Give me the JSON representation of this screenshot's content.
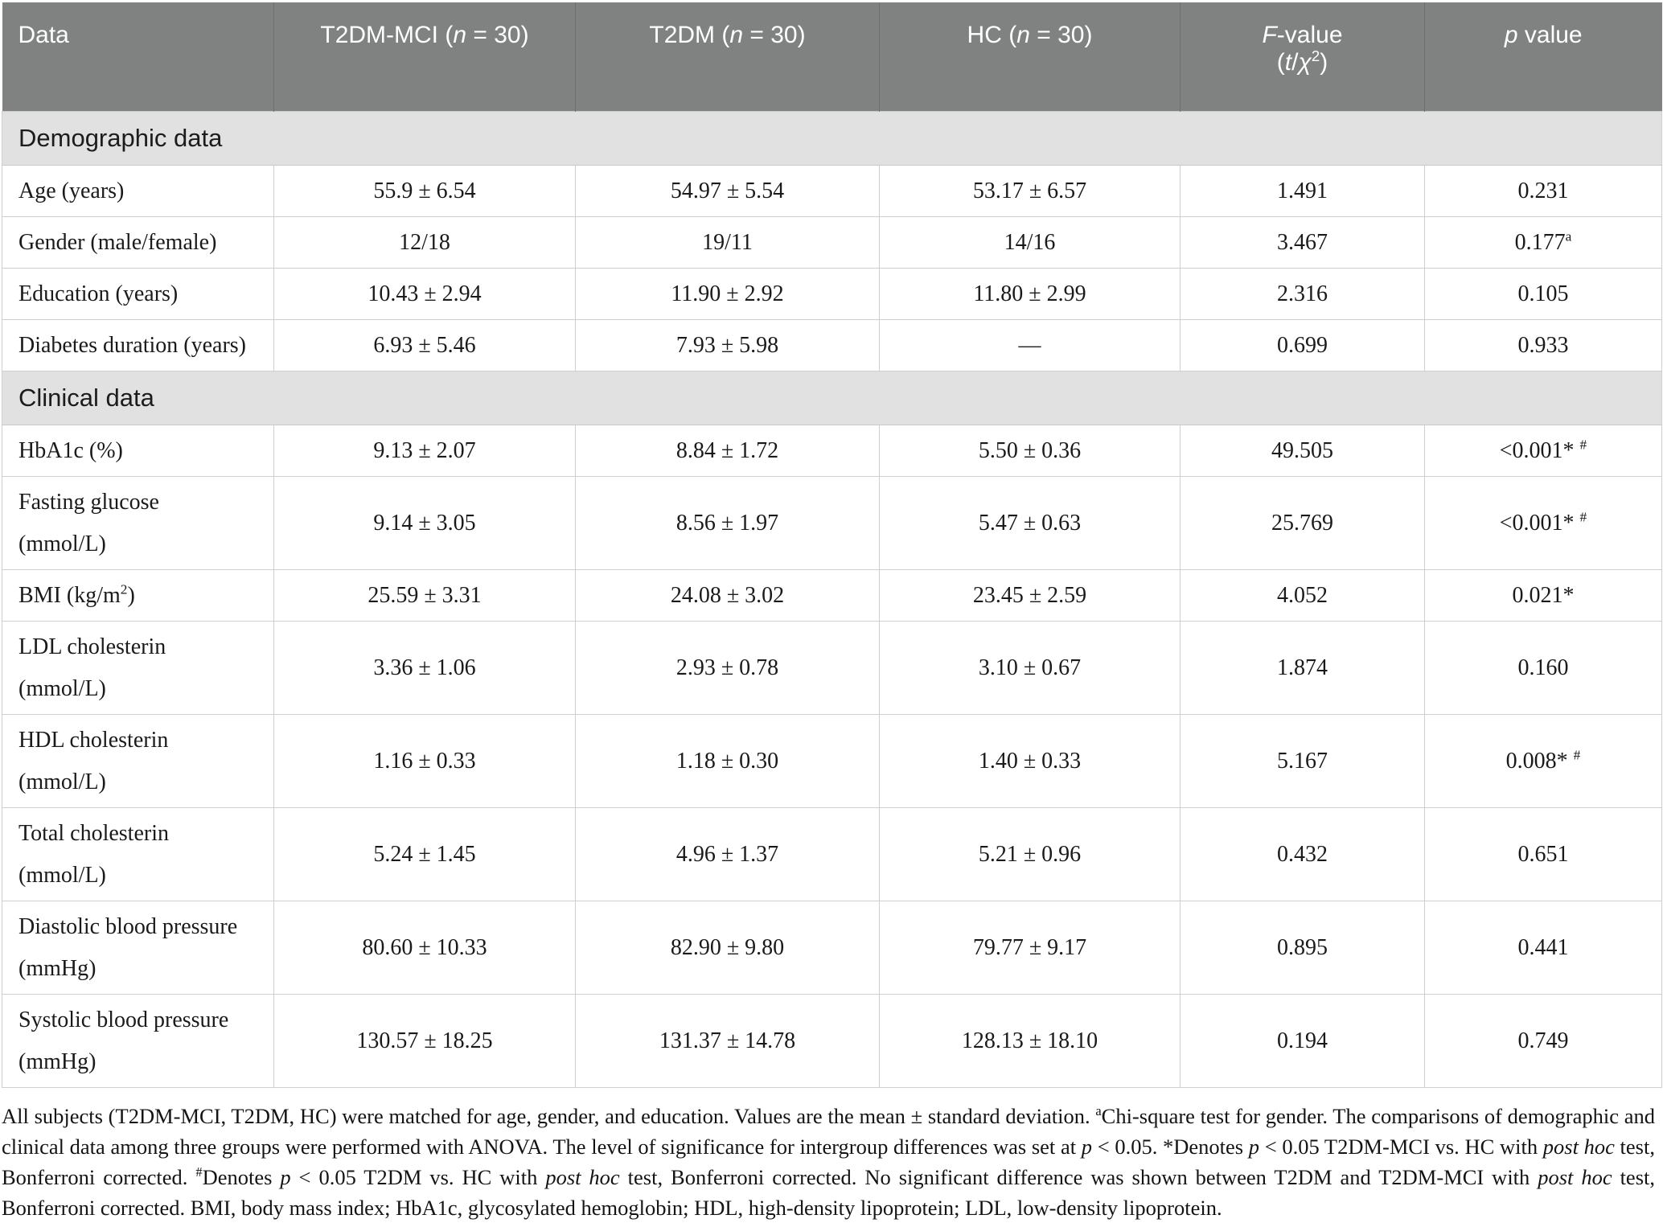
{
  "table": {
    "columns": [
      {
        "id": "data",
        "html": "Data",
        "text": "Data"
      },
      {
        "id": "t2dm-mci",
        "html": "T2DM-MCI (<i>n</i> = 30)",
        "text": "T2DM-MCI (n = 30)"
      },
      {
        "id": "t2dm",
        "html": "T2DM (<i>n</i> = 30)",
        "text": "T2DM (n = 30)"
      },
      {
        "id": "hc",
        "html": "HC (<i>n</i> = 30)",
        "text": "HC (n = 30)"
      },
      {
        "id": "f-value",
        "html": "<i>F</i>-value<br>(<i>t</i>/<i>χ</i><sup>2</sup>)",
        "text": "F-value (t/χ²)"
      },
      {
        "id": "p-value",
        "html": "<i>p</i> value",
        "text": "p value"
      }
    ],
    "sections": [
      {
        "title": "Demographic data",
        "rows": [
          {
            "label": "Age (years)",
            "cells": [
              "55.9 ± 6.54",
              "54.97 ± 5.54",
              "53.17 ± 6.57",
              "1.491",
              "0.231"
            ]
          },
          {
            "label": "Gender (male/female)",
            "cells": [
              "12/18",
              "19/11",
              "14/16",
              "3.467",
              "0.177<sup>a</sup>"
            ]
          },
          {
            "label": "Education (years)",
            "cells": [
              "10.43 ± 2.94",
              "11.90 ± 2.92",
              "11.80 ± 2.99",
              "2.316",
              "0.105"
            ]
          },
          {
            "label": "Diabetes duration (years)",
            "cells": [
              "6.93 ± 5.46",
              "7.93 ± 5.98",
              "—",
              "0.699",
              "0.933"
            ]
          }
        ]
      },
      {
        "title": "Clinical data",
        "rows": [
          {
            "label": "HbA1c (%)",
            "cells": [
              "9.13 ± 2.07",
              "8.84 ± 1.72",
              "5.50 ± 0.36",
              "49.505",
              "&lt;0.001* <sup>#</sup>"
            ]
          },
          {
            "label": "Fasting glucose<br>(mmol/L)",
            "cells": [
              "9.14 ± 3.05",
              "8.56 ± 1.97",
              "5.47 ± 0.63",
              "25.769",
              "&lt;0.001* <sup>#</sup>"
            ]
          },
          {
            "label": "BMI (kg/m<sup>2</sup>)",
            "cells": [
              "25.59 ± 3.31",
              "24.08 ± 3.02",
              "23.45 ± 2.59",
              "4.052",
              "0.021*"
            ]
          },
          {
            "label": "LDL cholesterin<br>(mmol/L)",
            "cells": [
              "3.36 ± 1.06",
              "2.93 ± 0.78",
              "3.10 ± 0.67",
              "1.874",
              "0.160"
            ]
          },
          {
            "label": "HDL cholesterin<br>(mmol/L)",
            "cells": [
              "1.16 ± 0.33",
              "1.18 ± 0.30",
              "1.40 ± 0.33",
              "5.167",
              "0.008* <sup>#</sup>"
            ]
          },
          {
            "label": "Total cholesterin<br>(mmol/L)",
            "cells": [
              "5.24 ± 1.45",
              "4.96 ± 1.37",
              "5.21 ± 0.96",
              "0.432",
              "0.651"
            ]
          },
          {
            "label": "Diastolic blood pressure<br>(mmHg)",
            "cells": [
              "80.60 ± 10.33",
              "82.90 ± 9.80",
              "79.77 ± 9.17",
              "0.895",
              "0.441"
            ]
          },
          {
            "label": "Systolic blood pressure<br>(mmHg)",
            "cells": [
              "130.57 ± 18.25",
              "131.37 ± 14.78",
              "128.13 ± 18.10",
              "0.194",
              "0.749"
            ]
          }
        ]
      }
    ],
    "footnote_html": "All subjects (T2DM-MCI, T2DM, HC) were matched for age, gender, and education. Values are the mean ± standard deviation. <sup>a</sup>Chi-square test for gender. The comparisons of demographic and clinical data among three groups were performed with ANOVA. The level of significance for intergroup differences was set at <i>p</i> &lt; 0.05. *Denotes <i>p</i> &lt; 0.05 T2DM-MCI vs. HC with <i>post hoc</i> test, Bonferroni corrected. <sup>#</sup>Denotes <i>p</i> &lt; 0.05 T2DM vs. HC with <i>post hoc</i> test, Bonferroni corrected. No significant difference was shown between T2DM and T2DM-MCI with <i>post hoc</i> test, Bonferroni corrected. BMI, body mass index; HbA1c, glycosylated hemoglobin; HDL, high-density lipoprotein; LDL, low-density lipoprotein.",
    "colors": {
      "header_bg": "#808282",
      "header_text": "#ffffff",
      "section_bg": "#e1e1e1",
      "body_text": "#1a1a1a",
      "border": "#cfcfcf"
    }
  }
}
